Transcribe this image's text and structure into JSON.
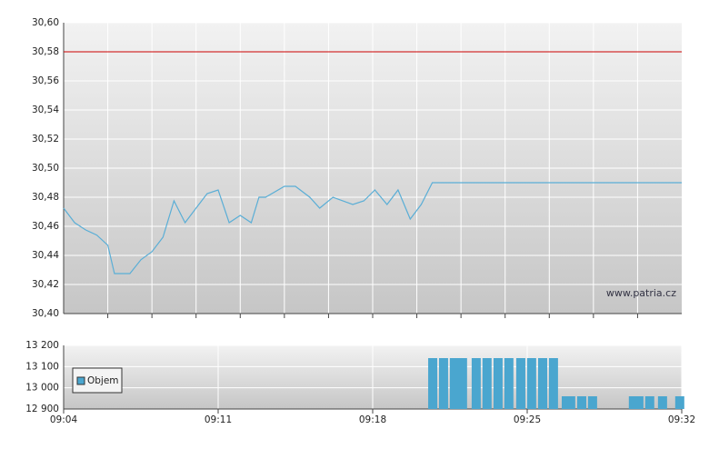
{
  "chart_data": [
    {
      "type": "line",
      "color": "#5aaed6",
      "watermark": "www.patria.cz",
      "x": [
        544,
        544.5,
        545,
        545.5,
        546,
        546.3,
        547,
        547.5,
        548,
        548.5,
        549,
        549.5,
        550,
        550.5,
        551,
        551.5,
        552,
        552.5,
        552.85,
        553.15,
        554,
        554.5,
        555.15,
        555.6,
        556.2,
        557.1,
        557.6,
        558.1,
        558.65,
        559.15,
        559.7,
        560.2,
        560.7,
        572
      ],
      "values": [
        30.4725,
        30.4625,
        30.4575,
        30.454,
        30.447,
        30.4275,
        30.4275,
        30.437,
        30.4425,
        30.4525,
        30.4775,
        30.4625,
        30.4725,
        30.4825,
        30.485,
        30.4625,
        30.4675,
        30.4625,
        30.48,
        30.48,
        30.4875,
        30.4875,
        30.48,
        30.4725,
        30.48,
        30.475,
        30.4775,
        30.485,
        30.475,
        30.485,
        30.465,
        30.475,
        30.49,
        30.49
      ],
      "reference_line": {
        "value": 30.58,
        "color": "#cc0000"
      },
      "xlim": [
        544,
        572
      ],
      "xgrid": [
        546,
        548,
        550,
        552,
        554,
        556,
        558,
        560,
        562,
        564,
        566,
        568,
        570
      ],
      "ylim": [
        30.4,
        30.6
      ],
      "yticks": [
        {
          "value": 30.4,
          "label": "30,40"
        },
        {
          "value": 30.42,
          "label": "30,42"
        },
        {
          "value": 30.44,
          "label": "30,44"
        },
        {
          "value": 30.46,
          "label": "30,46"
        },
        {
          "value": 30.48,
          "label": "30,48"
        },
        {
          "value": 30.5,
          "label": "30,50"
        },
        {
          "value": 30.52,
          "label": "30,52"
        },
        {
          "value": 30.54,
          "label": "30,54"
        },
        {
          "value": 30.56,
          "label": "30,56"
        },
        {
          "value": 30.58,
          "label": "30,58"
        },
        {
          "value": 30.6,
          "label": "30,60"
        }
      ],
      "grid": true
    },
    {
      "type": "bar",
      "legend": "upper left",
      "x": [
        560.72,
        561.21,
        561.7,
        562.07,
        562.69,
        563.18,
        563.68,
        564.17,
        564.71,
        565.2,
        565.7,
        566.19,
        566.77,
        566.97,
        567.47,
        567.96,
        569.81,
        570.06,
        570.55,
        571.13,
        571.91
      ],
      "series": [
        {
          "name": "Objem",
          "color": "#4aa6cf",
          "values": [
            13140,
            13140,
            13140,
            13140,
            13140,
            13140,
            13140,
            13140,
            13140,
            13140,
            13140,
            13140,
            12960,
            12960,
            12960,
            12960,
            12960,
            12960,
            12960,
            12960,
            12960
          ]
        }
      ],
      "xlim": [
        544,
        572
      ],
      "xticks": [
        {
          "value": 544,
          "label": "09:04"
        },
        {
          "value": 551,
          "label": "09:11"
        },
        {
          "value": 558,
          "label": "09:18"
        },
        {
          "value": 565,
          "label": "09:25"
        },
        {
          "value": 572,
          "label": "09:32"
        }
      ],
      "ylim": [
        12900,
        13200
      ],
      "yticks": [
        {
          "value": 12900,
          "label": "12 900"
        },
        {
          "value": 13000,
          "label": "13 000"
        },
        {
          "value": 13100,
          "label": "13 100"
        },
        {
          "value": 13200,
          "label": "13 200"
        }
      ],
      "grid": true
    }
  ]
}
